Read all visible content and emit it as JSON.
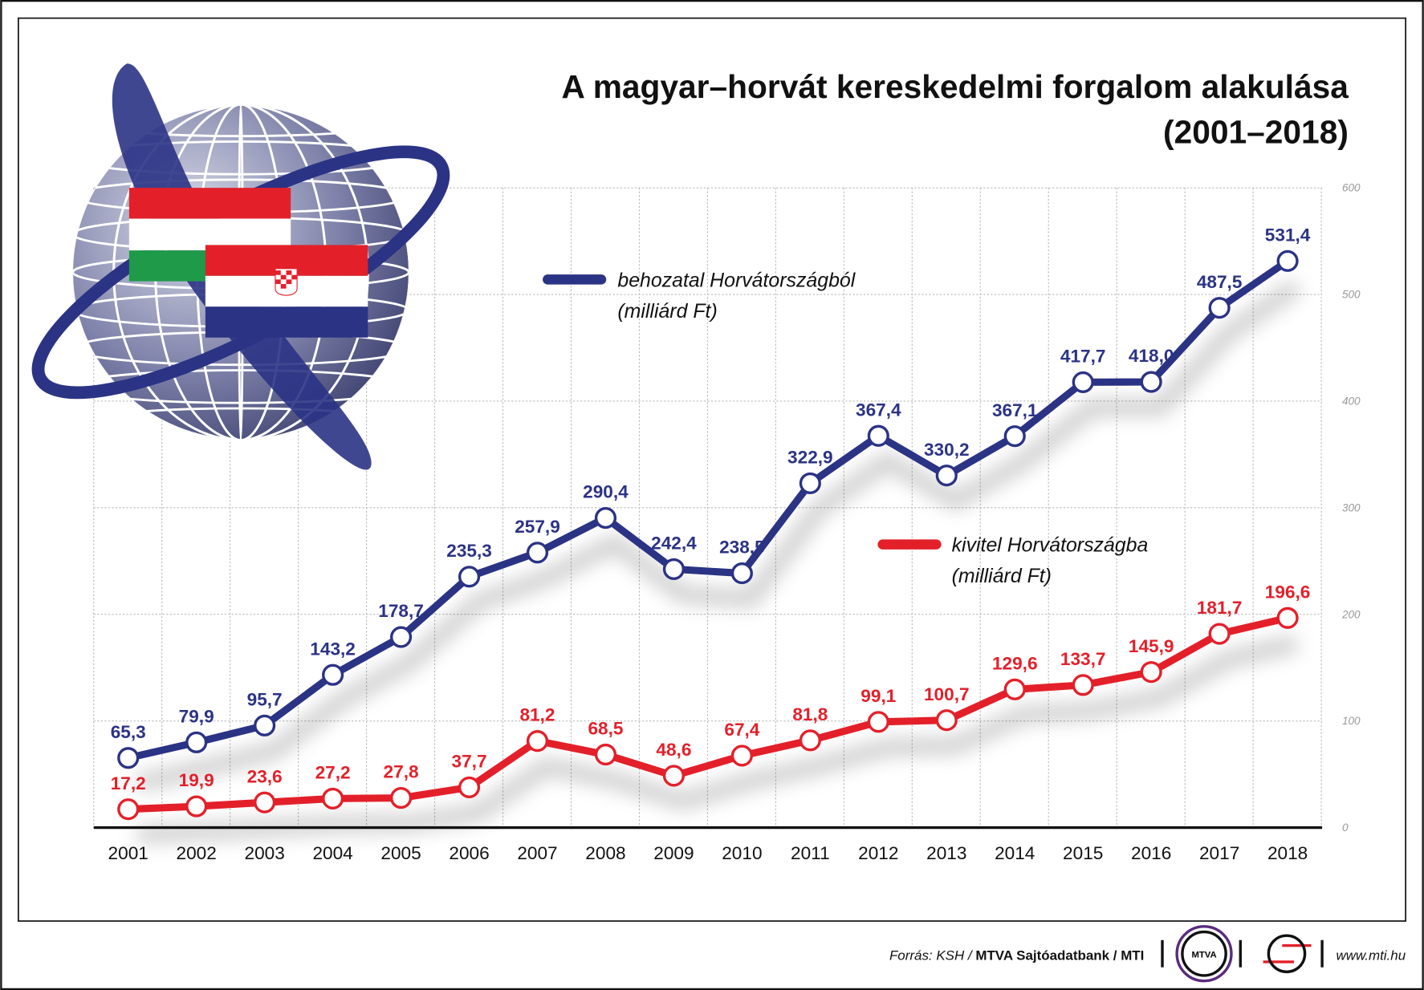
{
  "chart_data": {
    "type": "line",
    "title": "A magyar–horvát kereskedelmi forgalom alakulása",
    "subtitle": "(2001–2018)",
    "categories": [
      "2001",
      "2002",
      "2003",
      "2004",
      "2005",
      "2006",
      "2007",
      "2008",
      "2009",
      "2010",
      "2011",
      "2012",
      "2013",
      "2014",
      "2015",
      "2016",
      "2017",
      "2018"
    ],
    "series": [
      {
        "name": "behozatal Horvátországból",
        "unit": "(milliárd Ft)",
        "color": "#2b3385",
        "values": [
          65.3,
          79.9,
          95.7,
          143.2,
          178.7,
          235.3,
          257.9,
          290.4,
          242.4,
          238.5,
          322.9,
          367.4,
          330.2,
          367.1,
          417.7,
          418.0,
          487.5,
          531.4
        ],
        "labels": [
          "65,3",
          "79,9",
          "95,7",
          "143,2",
          "178,7",
          "235,3",
          "257,9",
          "290,4",
          "242,4",
          "238,5",
          "322,9",
          "367,4",
          "330,2",
          "367,1",
          "417,7",
          "418,0",
          "487,5",
          "531,4"
        ]
      },
      {
        "name": "kivitel Horvátországba",
        "unit": "(milliárd Ft)",
        "color": "#e3202a",
        "values": [
          17.2,
          19.9,
          23.6,
          27.2,
          27.8,
          37.7,
          81.2,
          68.5,
          48.6,
          67.4,
          81.8,
          99.1,
          100.7,
          129.6,
          133.7,
          145.9,
          181.7,
          196.6
        ],
        "labels": [
          "17,2",
          "19,9",
          "23,6",
          "27,2",
          "27,8",
          "37,7",
          "81,2",
          "68,5",
          "48,6",
          "67,4",
          "81,8",
          "99,1",
          "100,7",
          "129,6",
          "133,7",
          "145,9",
          "181,7",
          "196,6"
        ]
      }
    ],
    "ylim": [
      0,
      600
    ],
    "yticks": [
      "0",
      "100",
      "200",
      "300",
      "400",
      "500",
      "600"
    ],
    "grid": true,
    "legend_placement": "inline"
  },
  "footer": {
    "source_prefix": "Forrás: KSH / ",
    "source_bold": "MTVA Sajtóadatbank / MTI",
    "mtva_logo": "MTVA",
    "url": "www.mti.hu"
  }
}
